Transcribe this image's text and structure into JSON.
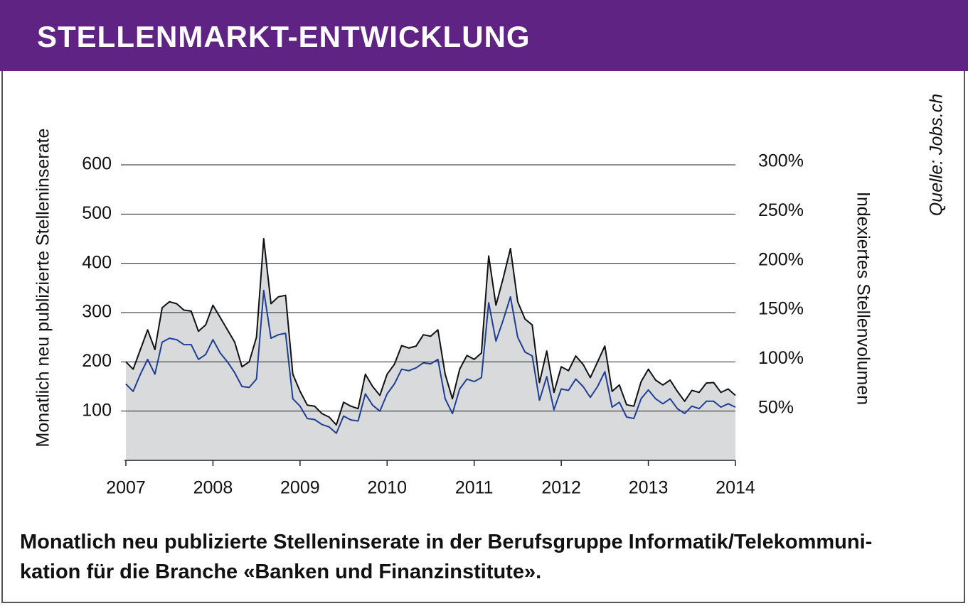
{
  "header": {
    "title": "STELLENMARKT-ENTWICKLUNG"
  },
  "chart_data": {
    "type": "line",
    "y_label": "Monatlich neu publizierte Stelleninserate",
    "y2_label": "Indexiertes Stellenvolumen",
    "source": "Quelle: Jobs.ch",
    "xlim": [
      0,
      84
    ],
    "xticks": [
      {
        "value": 0,
        "label": "2007"
      },
      {
        "value": 12,
        "label": "2008"
      },
      {
        "value": 24,
        "label": "2009"
      },
      {
        "value": 36,
        "label": "2010"
      },
      {
        "value": 48,
        "label": "2011"
      },
      {
        "value": 60,
        "label": "2012"
      },
      {
        "value": 72,
        "label": "2013"
      },
      {
        "value": 84,
        "label": "2014"
      }
    ],
    "ylim": [
      0,
      600
    ],
    "yticks": [
      100,
      200,
      300,
      400,
      500,
      600
    ],
    "y2lim": [
      0,
      300
    ],
    "y2ticks": [
      {
        "value": 50,
        "label": "50%"
      },
      {
        "value": 100,
        "label": "100%"
      },
      {
        "value": 150,
        "label": "150%"
      },
      {
        "value": 200,
        "label": "200%"
      },
      {
        "value": 250,
        "label": "250%"
      },
      {
        "value": 300,
        "label": "300%"
      }
    ],
    "grid": true,
    "series": [
      {
        "color": "#111111",
        "fill": "#d9dadc",
        "values": [
          200,
          185,
          225,
          265,
          225,
          310,
          322,
          318,
          305,
          303,
          262,
          275,
          315,
          290,
          265,
          240,
          190,
          200,
          250,
          450,
          318,
          332,
          335,
          175,
          140,
          112,
          110,
          95,
          88,
          72,
          118,
          110,
          105,
          175,
          150,
          132,
          175,
          195,
          233,
          228,
          232,
          255,
          252,
          265,
          175,
          125,
          185,
          213,
          205,
          218,
          415,
          315,
          370,
          430,
          322,
          287,
          275,
          158,
          222,
          138,
          190,
          182,
          212,
          195,
          168,
          200,
          232,
          140,
          153,
          113,
          110,
          160,
          185,
          163,
          153,
          163,
          140,
          120,
          142,
          138,
          157,
          158,
          138,
          145,
          132
        ]
      },
      {
        "color": "#1f3f95",
        "axis": "y2",
        "values": [
          77.5,
          70,
          87.5,
          102.5,
          87.5,
          120,
          124,
          122.5,
          117.5,
          117.5,
          102.5,
          107.5,
          122.5,
          109,
          100,
          89,
          75,
          74,
          82.5,
          172.5,
          124,
          127.5,
          129,
          62.5,
          55,
          42.5,
          41.5,
          36.5,
          34,
          27.5,
          45,
          41,
          40,
          67.5,
          56,
          50,
          67.5,
          77.5,
          92.5,
          91,
          94,
          99,
          98,
          102.5,
          62.5,
          47.5,
          72.5,
          82.5,
          80,
          84,
          160,
          121,
          142.5,
          166,
          125,
          110,
          106,
          61,
          85,
          51.5,
          72.5,
          71,
          82.5,
          75,
          64,
          75,
          90,
          54,
          59,
          44,
          42.5,
          62.5,
          71.5,
          62.5,
          57.5,
          62.5,
          52.5,
          47.5,
          55,
          52.5,
          60,
          60,
          54,
          57.5,
          54
        ]
      }
    ]
  },
  "caption": {
    "lines": [
      "Monatlich neu publizierte Stelleninserate in der Berufsgruppe Informatik/Telekommuni-",
      "kation für die Branche «Banken und Finanzinstitute»."
    ]
  }
}
